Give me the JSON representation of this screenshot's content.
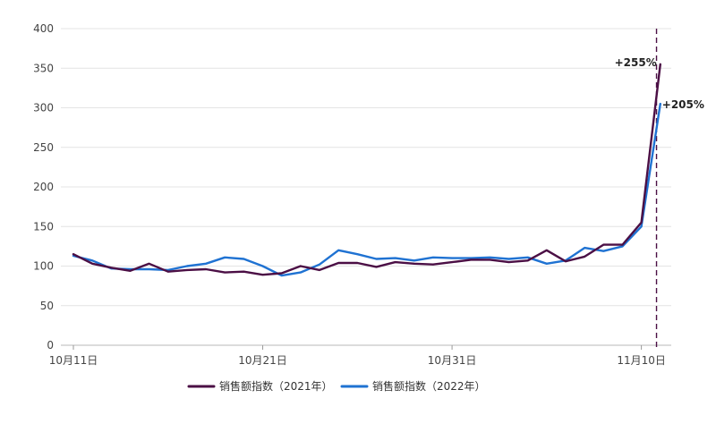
{
  "chart_data": {
    "type": "line",
    "title": "",
    "xlabel": "",
    "ylabel": "",
    "ylim": [
      0,
      400
    ],
    "yticks": [
      0,
      50,
      100,
      150,
      200,
      250,
      300,
      350,
      400
    ],
    "x_tick_labels": [
      {
        "index": 0,
        "label": "10月11日"
      },
      {
        "index": 10,
        "label": "10月21日"
      },
      {
        "index": 20,
        "label": "10月31日"
      },
      {
        "index": 30,
        "label": "11月10日"
      }
    ],
    "grid": "horizontal",
    "legend_position": "bottom",
    "series": [
      {
        "name": "销售额指数（2021年）",
        "color": "#4b0f45",
        "values": [
          115,
          103,
          98,
          94,
          103,
          93,
          95,
          96,
          92,
          93,
          89,
          91,
          100,
          95,
          104,
          104,
          99,
          105,
          103,
          102,
          105,
          108,
          108,
          105,
          107,
          120,
          106,
          112,
          127,
          127,
          155,
          355
        ]
      },
      {
        "name": "销售额指数（2022年）",
        "color": "#1f72d2",
        "values": [
          113,
          107,
          97,
          96,
          96,
          95,
          100,
          103,
          111,
          109,
          100,
          88,
          92,
          102,
          120,
          115,
          109,
          110,
          107,
          111,
          110,
          110,
          111,
          109,
          111,
          103,
          107,
          123,
          119,
          125,
          150,
          305
        ]
      }
    ],
    "annotations": [
      {
        "text": "+255%",
        "series": 0,
        "index": 31
      },
      {
        "text": "+205%",
        "series": 1,
        "index": 31
      }
    ],
    "reference_line": {
      "index": 30.8,
      "style": "dashed",
      "color": "#4b0f45"
    }
  }
}
